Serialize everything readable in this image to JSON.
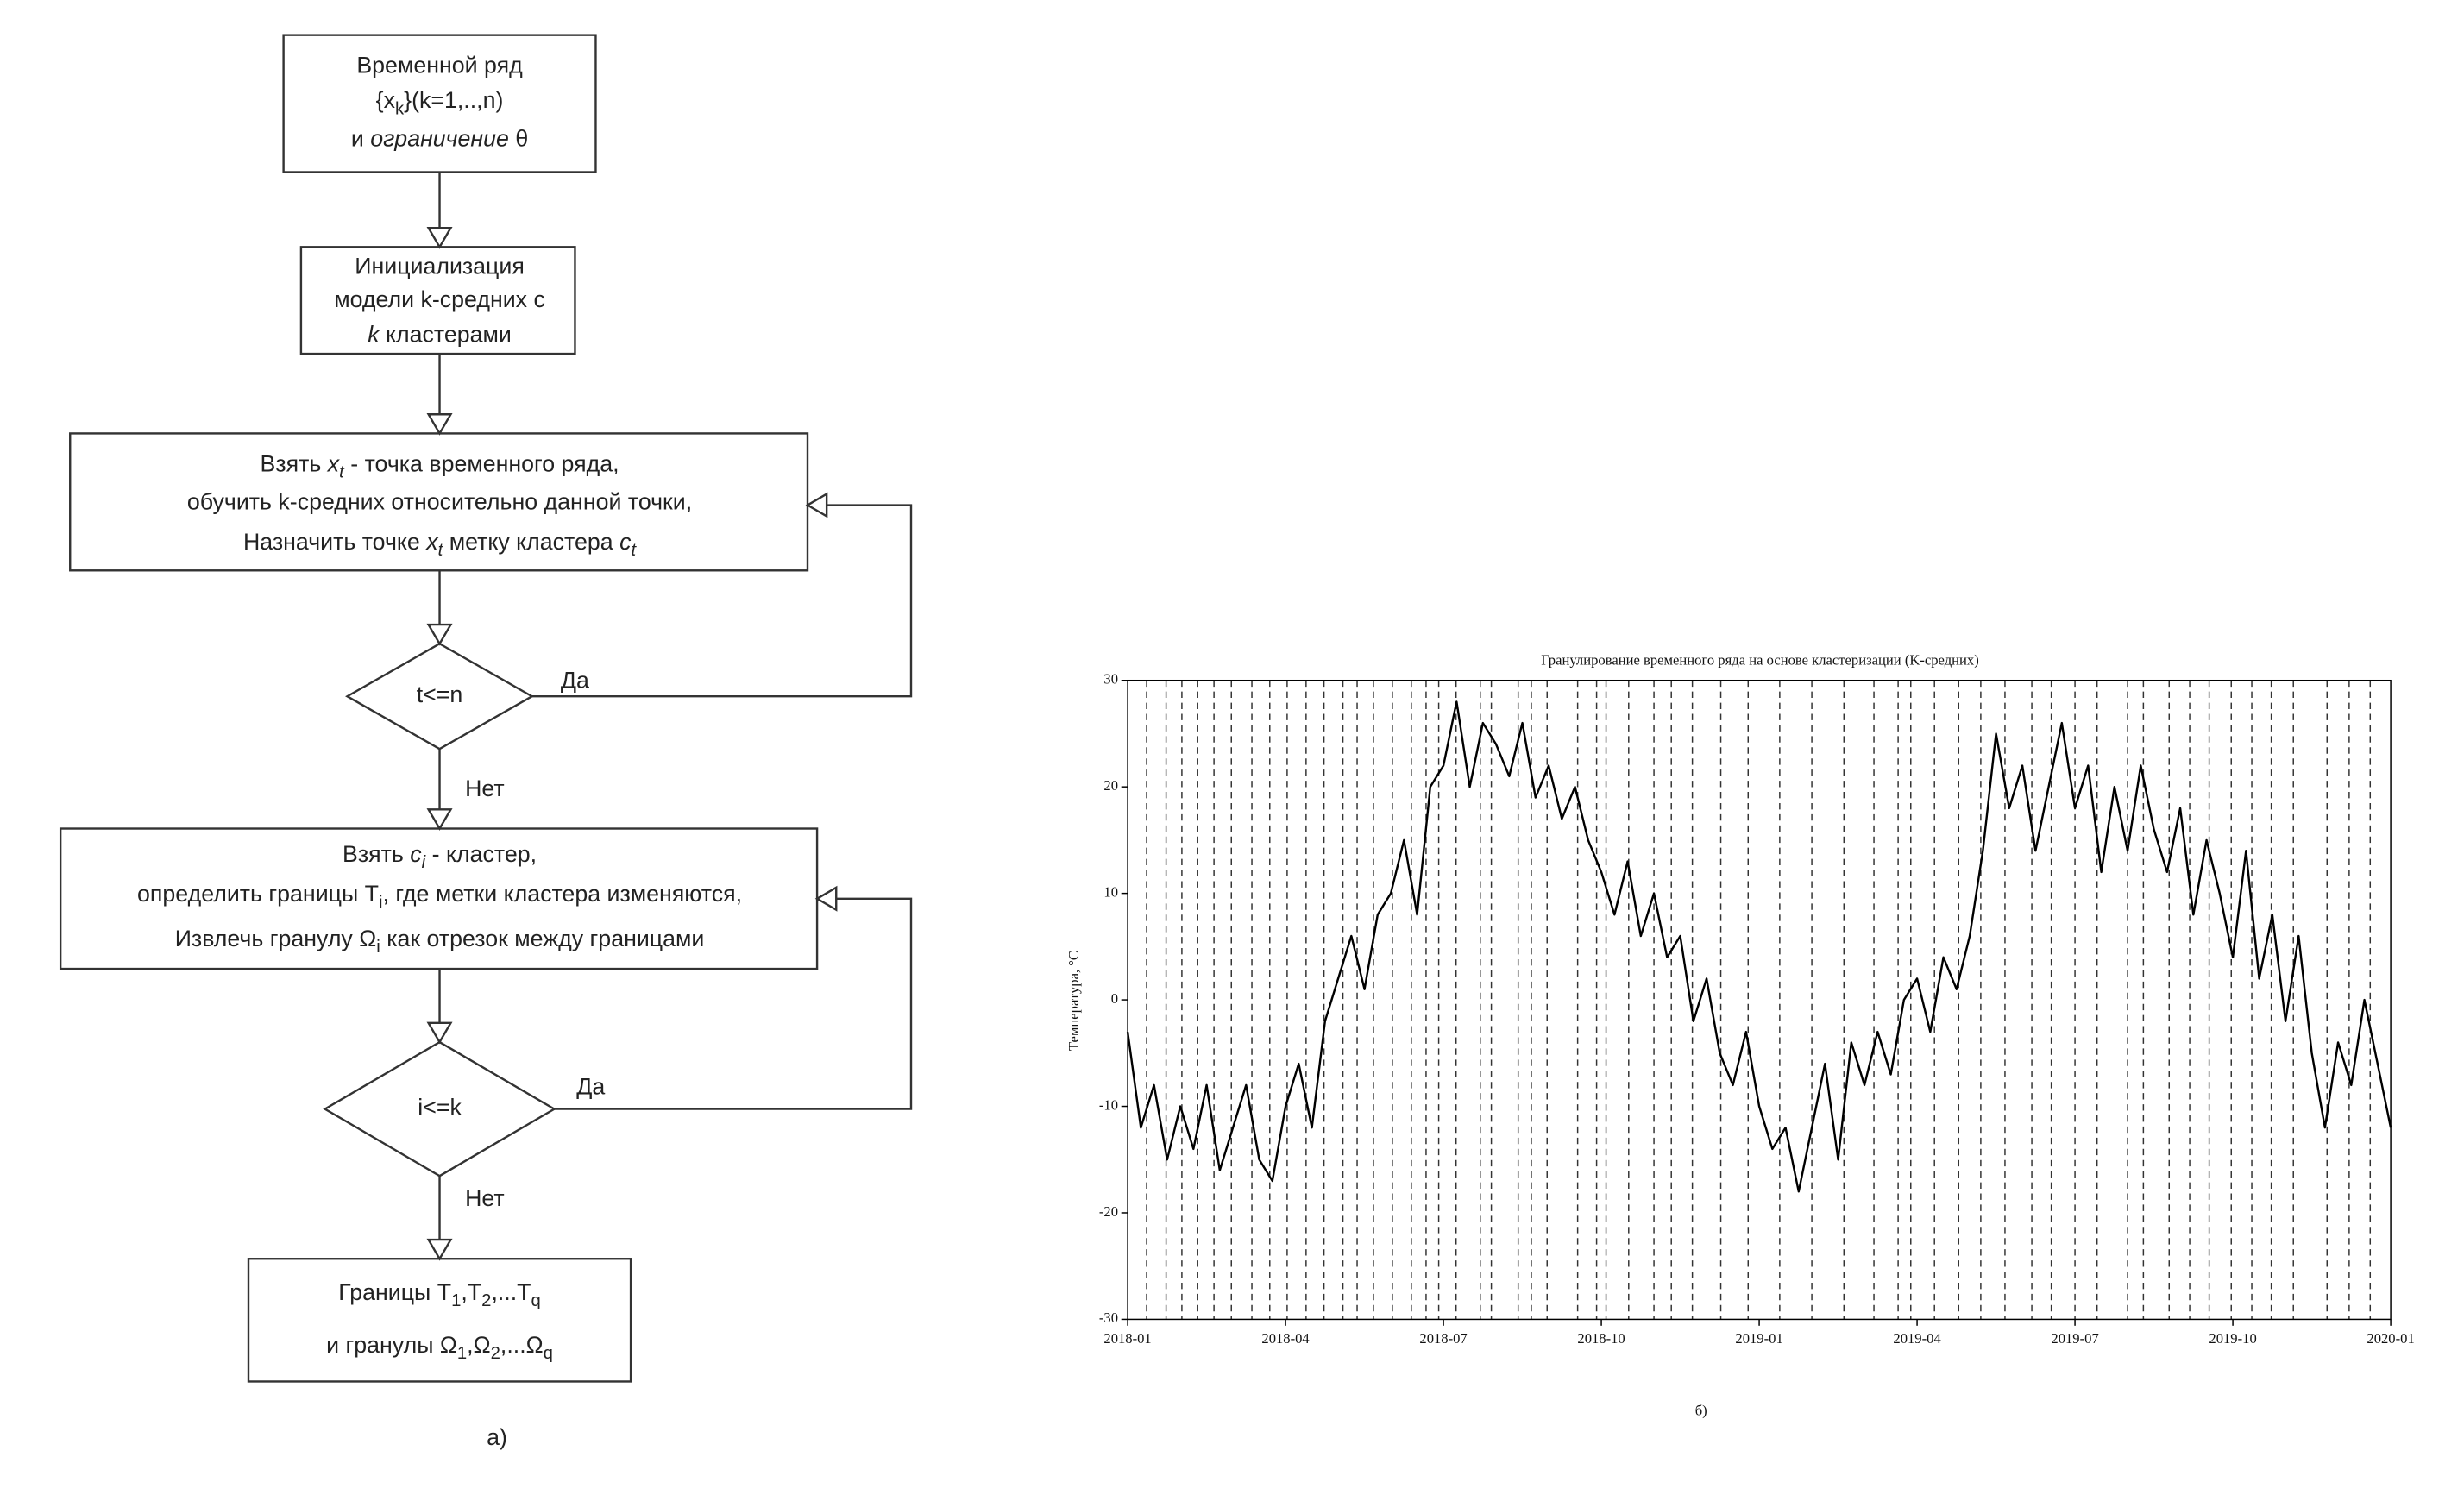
{
  "flowchart": {
    "nodes": [
      {
        "lines": [
          [
            "Временной ряд"
          ],
          [
            "{x",
            {
              "t": "k",
              "s": "sub"
            },
            "}(k=1,..,n)"
          ],
          [
            "и ",
            {
              "t": "ограничение",
              "s": "i"
            },
            " θ"
          ]
        ]
      },
      {
        "lines": [
          [
            "Инициализация"
          ],
          [
            "модели k-средних с"
          ],
          [
            {
              "t": "k",
              "s": "i"
            },
            " кластерами"
          ]
        ]
      },
      {
        "lines": [
          [
            "Взять ",
            {
              "t": "x",
              "s": "i"
            },
            {
              "t": "t",
              "s": "isub"
            },
            " - точка временного ряда,"
          ],
          [
            "обучить k-средних относительно данной точки,"
          ],
          [
            "Назначить точке ",
            {
              "t": "x",
              "s": "i"
            },
            {
              "t": "t",
              "s": "isub"
            },
            "  метку кластера ",
            {
              "t": "c",
              "s": "i"
            },
            {
              "t": "t",
              "s": "isub"
            }
          ]
        ]
      },
      {
        "lines": [
          [
            "t<=n"
          ]
        ]
      },
      {
        "lines": [
          [
            "Взять ",
            {
              "t": "c",
              "s": "i"
            },
            {
              "t": "i",
              "s": "isub"
            },
            " - кластер,"
          ],
          [
            "определить границы T",
            {
              "t": "i",
              "s": "sub"
            },
            ", где метки кластера изменяются,"
          ],
          [
            "Извлечь гранулу Ω",
            {
              "t": "i",
              "s": "sub"
            },
            " как отрезок между границами"
          ]
        ]
      },
      {
        "lines": [
          [
            "i<=k"
          ]
        ]
      },
      {
        "lines": [
          [
            "Границы T",
            {
              "t": "1",
              "s": "sub"
            },
            ",T",
            {
              "t": "2",
              "s": "sub"
            },
            ",...T",
            {
              "t": "q",
              "s": "sub"
            }
          ],
          [
            "и гранулы Ω",
            {
              "t": "1",
              "s": "sub"
            },
            ",Ω",
            {
              "t": "2",
              "s": "sub"
            },
            ",...Ω",
            {
              "t": "q",
              "s": "sub"
            }
          ]
        ]
      }
    ],
    "edge_labels": [
      "Да",
      "Нет",
      "Да",
      "Нет"
    ],
    "caption": "а)"
  },
  "chart_data": {
    "type": "line",
    "title": "Гранулирование временного ряда на основе кластеризации (K-средних)",
    "y_label": "Температура, °C",
    "x": [
      0,
      0.25,
      0.5,
      0.75,
      1,
      1.25,
      1.5,
      1.75,
      2,
      2.25,
      2.5,
      2.75,
      3,
      3.25,
      3.5,
      3.75,
      4,
      4.25,
      4.5,
      4.75,
      5,
      5.25,
      5.5,
      5.75,
      6,
      6.25,
      6.5,
      6.75,
      7,
      7.25,
      7.5,
      7.75,
      8,
      8.25,
      8.5,
      8.75,
      9,
      9.25,
      9.5,
      9.75,
      10,
      10.25,
      10.5,
      10.75,
      11,
      11.25,
      11.5,
      11.75,
      12,
      12.25,
      12.5,
      12.75,
      13,
      13.25,
      13.5,
      13.75,
      14,
      14.25,
      14.5,
      14.75,
      15,
      15.25,
      15.5,
      15.75,
      16,
      16.25,
      16.5,
      16.75,
      17,
      17.25,
      17.5,
      17.75,
      18,
      18.25,
      18.5,
      18.75,
      19,
      19.25,
      19.5,
      19.75,
      20,
      20.25,
      20.5,
      20.75,
      21,
      21.25,
      21.5,
      21.75,
      22,
      22.25,
      22.5,
      22.75,
      23,
      23.25,
      23.5,
      23.75,
      24
    ],
    "series": [
      {
        "color": "#000000",
        "values": [
          -3,
          -12,
          -8,
          -15,
          -10,
          -14,
          -8,
          -16,
          -12,
          -8,
          -15,
          -17,
          -10,
          -6,
          -12,
          -2,
          2,
          6,
          1,
          8,
          10,
          15,
          8,
          20,
          22,
          28,
          20,
          26,
          24,
          21,
          26,
          19,
          22,
          17,
          20,
          15,
          12,
          8,
          13,
          6,
          10,
          4,
          6,
          -2,
          2,
          -5,
          -8,
          -3,
          -10,
          -14,
          -12,
          -18,
          -12,
          -6,
          -15,
          -4,
          -8,
          -3,
          -7,
          0,
          2,
          -3,
          4,
          1,
          6,
          14,
          25,
          18,
          22,
          14,
          20,
          26,
          18,
          22,
          12,
          20,
          14,
          22,
          16,
          12,
          18,
          8,
          15,
          10,
          4,
          14,
          2,
          8,
          -2,
          6,
          -5,
          -12,
          -4,
          -8,
          0,
          -6,
          -12
        ]
      }
    ],
    "boundaries": [
      0.36,
      0.73,
      1.03,
      1.33,
      1.64,
      1.97,
      2.36,
      2.7,
      3.03,
      3.39,
      3.73,
      4.09,
      4.36,
      4.67,
      5.03,
      5.39,
      5.67,
      5.91,
      6.24,
      6.7,
      6.91,
      7.42,
      7.67,
      7.97,
      8.55,
      8.91,
      9.09,
      9.52,
      10.0,
      10.33,
      10.73,
      11.27,
      11.79,
      12.39,
      13.0,
      13.61,
      14.18,
      14.64,
      14.88,
      15.33,
      15.79,
      16.21,
      16.67,
      17.18,
      17.55,
      18.0,
      18.42,
      19.0,
      19.3,
      19.79,
      20.18,
      20.55,
      20.97,
      21.36,
      21.73,
      22.15,
      22.79,
      23.21,
      23.61
    ],
    "xlim": [
      0,
      24
    ],
    "xticks": [
      {
        "value": 0,
        "label": "2018-01"
      },
      {
        "value": 3,
        "label": "2018-04"
      },
      {
        "value": 6,
        "label": "2018-07"
      },
      {
        "value": 9,
        "label": "2018-10"
      },
      {
        "value": 12,
        "label": "2019-01"
      },
      {
        "value": 15,
        "label": "2019-04"
      },
      {
        "value": 18,
        "label": "2019-07"
      },
      {
        "value": 21,
        "label": "2019-10"
      },
      {
        "value": 24,
        "label": "2020-01"
      }
    ],
    "ylim": [
      -30,
      30
    ],
    "yticks": [
      -30,
      -20,
      -10,
      0,
      10,
      20,
      30
    ],
    "caption": "б)"
  }
}
